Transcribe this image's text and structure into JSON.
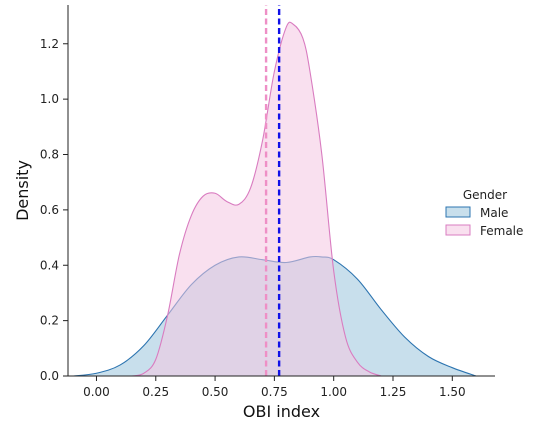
{
  "chart_data": {
    "type": "area",
    "xlabel": "OBI index",
    "ylabel": "Density",
    "xlim": [
      -0.12,
      1.68
    ],
    "ylim": [
      0,
      1.34
    ],
    "x_ticks": [
      0.0,
      0.25,
      0.5,
      0.75,
      1.0,
      1.25,
      1.5
    ],
    "x_tick_labels": [
      "0.00",
      "0.25",
      "0.50",
      "0.75",
      "1.00",
      "1.25",
      "1.50"
    ],
    "y_ticks": [
      0.0,
      0.2,
      0.4,
      0.6,
      0.8,
      1.0,
      1.2
    ],
    "y_tick_labels": [
      "0.0",
      "0.2",
      "0.4",
      "0.6",
      "0.8",
      "1.0",
      "1.2"
    ],
    "grid": false,
    "legend": {
      "title": "Gender",
      "position": "right",
      "entries": [
        "Male",
        "Female"
      ]
    },
    "series": [
      {
        "name": "Male",
        "fill": "#a6cbe0",
        "stroke": "#2c74b0",
        "x": [
          -0.1,
          0.0,
          0.1,
          0.2,
          0.3,
          0.4,
          0.5,
          0.6,
          0.7,
          0.8,
          0.9,
          0.95,
          1.0,
          1.1,
          1.2,
          1.3,
          1.4,
          1.5,
          1.6
        ],
        "y": [
          0.0,
          0.01,
          0.04,
          0.11,
          0.22,
          0.33,
          0.4,
          0.43,
          0.42,
          0.41,
          0.43,
          0.43,
          0.42,
          0.35,
          0.24,
          0.14,
          0.07,
          0.03,
          0.0
        ]
      },
      {
        "name": "Female",
        "fill": "#f4c6e2",
        "stroke": "#d97cc0",
        "x": [
          0.15,
          0.2,
          0.25,
          0.3,
          0.35,
          0.4,
          0.45,
          0.5,
          0.55,
          0.6,
          0.65,
          0.7,
          0.75,
          0.8,
          0.83,
          0.87,
          0.9,
          0.95,
          1.0,
          1.05,
          1.1,
          1.15,
          1.2
        ],
        "y": [
          0.0,
          0.01,
          0.06,
          0.22,
          0.44,
          0.58,
          0.65,
          0.66,
          0.63,
          0.62,
          0.68,
          0.85,
          1.1,
          1.26,
          1.27,
          1.22,
          1.1,
          0.8,
          0.38,
          0.14,
          0.05,
          0.015,
          0.0
        ]
      }
    ],
    "vlines": [
      {
        "x": 0.715,
        "color": "#ee8fc6",
        "style": "dashed"
      },
      {
        "x": 0.77,
        "color": "#1010e8",
        "style": "dashed"
      }
    ]
  }
}
